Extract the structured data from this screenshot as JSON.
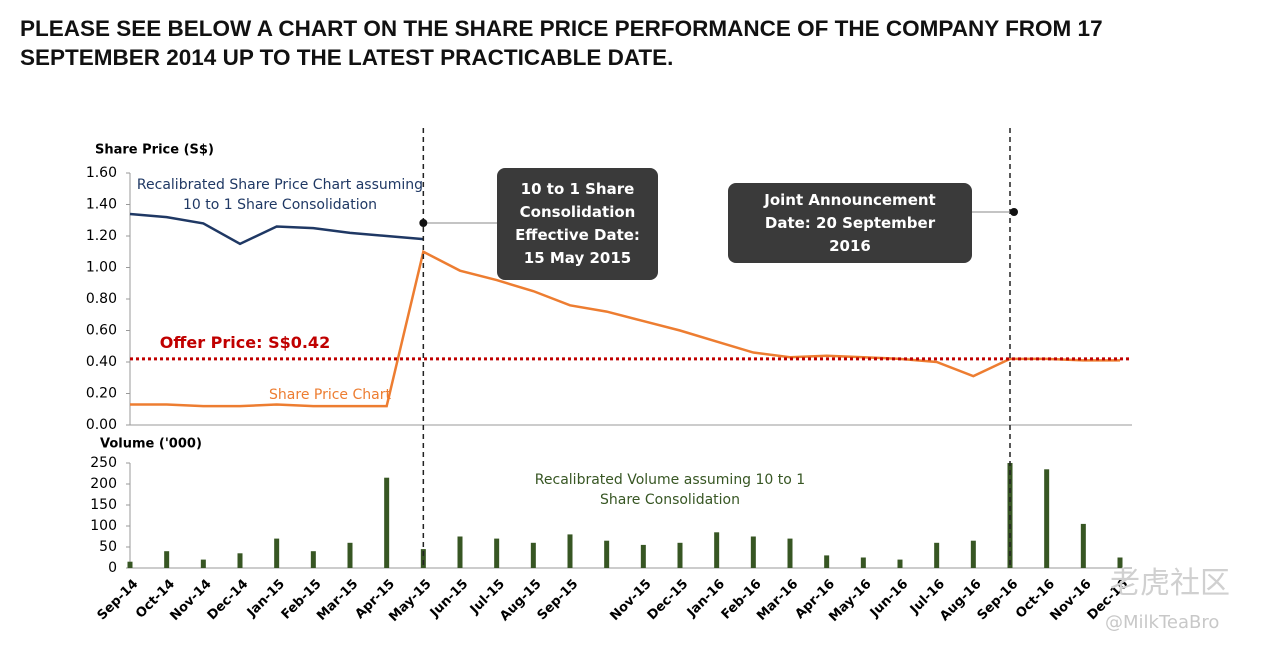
{
  "header": "PLEASE SEE BELOW A CHART ON THE SHARE PRICE PERFORMANCE OF THE COMPANY FROM 17 SEPTEMBER 2014 UP TO THE LATEST PRACTICABLE DATE.",
  "chart_data": [
    {
      "type": "line",
      "y_label": "Share Price (S$)",
      "ylim": [
        0,
        1.6
      ],
      "yticks": [
        {
          "value": 0,
          "label": "0.00"
        },
        {
          "value": 0.2,
          "label": "0.20"
        },
        {
          "value": 0.4,
          "label": "0.40"
        },
        {
          "value": 0.6,
          "label": "0.60"
        },
        {
          "value": 0.8,
          "label": "0.80"
        },
        {
          "value": 1.0,
          "label": "1.00"
        },
        {
          "value": 1.2,
          "label": "1.20"
        },
        {
          "value": 1.4,
          "label": "1.40"
        },
        {
          "value": 1.6,
          "label": "1.60"
        }
      ],
      "series": [
        {
          "name": "Recalibrated Share Price Chart assuming 10 to 1 Share Consolidation",
          "color": "#1f3864",
          "values": [
            1.34,
            1.32,
            1.28,
            1.15,
            1.26,
            1.25,
            1.22,
            1.2,
            1.18,
            null,
            null,
            null,
            null,
            null,
            null,
            null,
            null,
            null,
            null,
            null,
            null,
            null,
            null,
            null,
            null,
            null,
            null,
            null
          ]
        },
        {
          "name": "Share Price Chart",
          "color": "#ed7d31",
          "values": [
            0.13,
            0.13,
            0.12,
            0.12,
            0.13,
            0.12,
            0.12,
            0.12,
            1.1,
            0.98,
            0.92,
            0.85,
            0.76,
            0.72,
            0.66,
            0.6,
            0.53,
            0.46,
            0.43,
            0.44,
            0.43,
            0.42,
            0.4,
            0.31,
            0.42,
            0.42,
            0.41,
            0.41
          ]
        }
      ],
      "offer_line": {
        "value": 0.42,
        "label": "Offer Price: S$0.42",
        "color": "#c00000"
      },
      "events": [
        {
          "at": "May-15",
          "label": "10 to 1 Share Consolidation Effective Date: 15 May 2015"
        },
        {
          "at": "Sep-16",
          "label": "Joint Announcement Date: 20 September 2016"
        }
      ]
    },
    {
      "type": "bar",
      "y_label": "Volume ('000)",
      "annotation": "Recalibrated Volume assuming 10 to 1 Share Consolidation",
      "color": "#375623",
      "categories": [
        "Sep-14",
        "Oct-14",
        "Nov-14",
        "Dec-14",
        "Jan-15",
        "Feb-15",
        "Mar-15",
        "Apr-15",
        "May-15",
        "Jun-15",
        "Jul-15",
        "Aug-15",
        "Sep-15",
        null,
        "Nov-15",
        "Dec-15",
        "Jan-16",
        "Feb-16",
        "Mar-16",
        "Apr-16",
        "May-16",
        "Jun-16",
        "Jul-16",
        "Aug-16",
        "Sep-16",
        "Oct-16",
        "Nov-16",
        "Dec-16"
      ],
      "values": [
        15,
        40,
        20,
        35,
        70,
        40,
        60,
        215,
        45,
        75,
        70,
        60,
        80,
        65,
        55,
        60,
        85,
        75,
        70,
        30,
        25,
        20,
        60,
        65,
        250,
        235,
        105,
        25
      ],
      "ylim": [
        0,
        250
      ],
      "yticks": [
        0,
        50,
        100,
        150,
        200,
        250
      ]
    }
  ],
  "watermark": {
    "brand": "老虎社区",
    "handle": "@MilkTeaBro"
  }
}
